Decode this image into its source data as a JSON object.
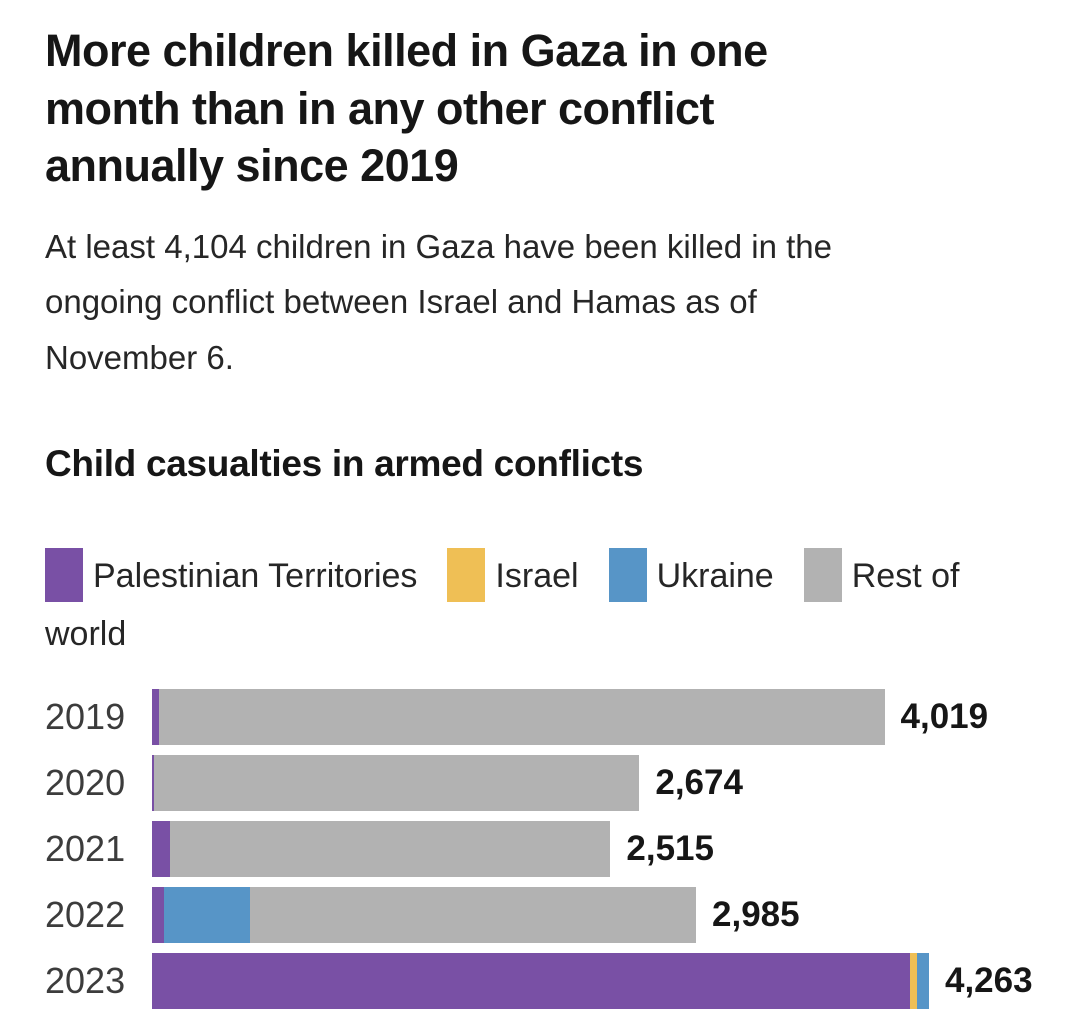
{
  "header": {
    "title": "More children killed in Gaza in one\nmonth than in any other conflict\nannually since 2019",
    "subtitle": "At least 4,104 children in Gaza have been killed in the\nongoing conflict between Israel and Hamas as of\nNovember 6."
  },
  "chart_data": {
    "type": "bar",
    "orientation": "horizontal",
    "stacked": true,
    "title": "Child casualties in armed conflicts",
    "xlabel": "",
    "ylabel": "",
    "xlim": [
      0,
      4263
    ],
    "grid": false,
    "legend_position": "top",
    "value_labels": "end-of-bar",
    "categories": [
      "2019",
      "2020",
      "2021",
      "2022",
      "2023"
    ],
    "max_total": 4263,
    "series": [
      {
        "key": "palestinian_territories",
        "name": "Palestinian Territories",
        "color": "#7950A5"
      },
      {
        "key": "israel",
        "name": "Israel",
        "color": "#EFBF55"
      },
      {
        "key": "ukraine",
        "name": "Ukraine",
        "color": "#5795C7"
      },
      {
        "key": "rest_of_world",
        "name": "Rest of world",
        "color": "#B2B2B2"
      }
    ],
    "rows": [
      {
        "year": "2019",
        "total": 4019,
        "total_label": "4,019",
        "segments": [
          {
            "series": "palestinian_territories",
            "value": 36
          },
          {
            "series": "rest_of_world",
            "value": 3983
          }
        ]
      },
      {
        "year": "2020",
        "total": 2674,
        "total_label": "2,674",
        "segments": [
          {
            "series": "palestinian_territories",
            "value": 13
          },
          {
            "series": "rest_of_world",
            "value": 2661
          }
        ]
      },
      {
        "year": "2021",
        "total": 2515,
        "total_label": "2,515",
        "segments": [
          {
            "series": "palestinian_territories",
            "value": 97
          },
          {
            "series": "rest_of_world",
            "value": 2418
          }
        ]
      },
      {
        "year": "2022",
        "total": 2985,
        "total_label": "2,985",
        "segments": [
          {
            "series": "palestinian_territories",
            "value": 64
          },
          {
            "series": "ukraine",
            "value": 476
          },
          {
            "series": "rest_of_world",
            "value": 2445
          }
        ]
      },
      {
        "year": "2023",
        "total": 4263,
        "total_label": "4,263",
        "segments": [
          {
            "series": "palestinian_territories",
            "value": 4160
          },
          {
            "series": "israel",
            "value": 38
          },
          {
            "series": "ukraine",
            "value": 65
          }
        ]
      }
    ]
  }
}
